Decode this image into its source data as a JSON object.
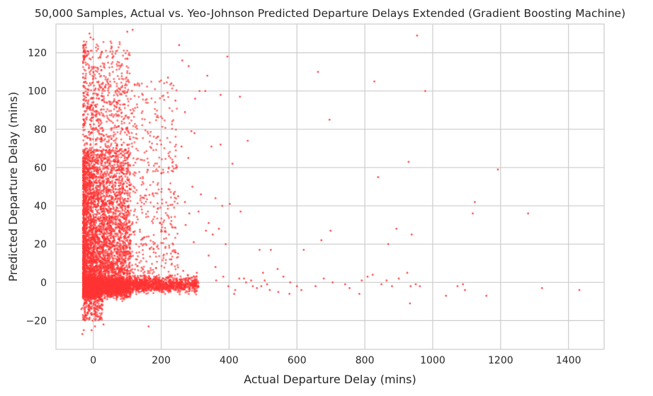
{
  "chart_data": {
    "type": "scatter",
    "title": "50,000 Samples, Actual vs. Yeo-Johnson Predicted Departure Delays Extended (Gradient Boosting Machine)",
    "xlabel": "Actual Departure Delay (mins)",
    "ylabel": "Predicted Departure Delay (mins)",
    "xlim": [
      -110,
      1505
    ],
    "ylim": [
      -35,
      135
    ],
    "xticks": [
      0,
      200,
      400,
      600,
      800,
      1000,
      1200,
      1400
    ],
    "yticks": [
      -20,
      0,
      20,
      40,
      60,
      80,
      100,
      120
    ],
    "xtick_labels": [
      "0",
      "200",
      "400",
      "600",
      "800",
      "1000",
      "1200",
      "1400"
    ],
    "ytick_labels": [
      "−20",
      "0",
      "20",
      "40",
      "60",
      "80",
      "100",
      "120"
    ],
    "grid": true,
    "sample_count": 50000,
    "series": [
      {
        "color": "#ff3333",
        "points": [
          [
            954,
            129
          ],
          [
            978,
            100
          ],
          [
            828,
            105
          ],
          [
            662,
            110
          ],
          [
            696,
            85
          ],
          [
            395,
            118
          ],
          [
            432,
            97
          ],
          [
            336,
            108
          ],
          [
            1192,
            59
          ],
          [
            929,
            63
          ],
          [
            839,
            55
          ],
          [
            1124,
            42
          ],
          [
            1281,
            36
          ],
          [
            1118,
            36
          ],
          [
            410,
            62
          ],
          [
            455,
            74
          ],
          [
            375,
            72
          ],
          [
            348,
            71
          ],
          [
            402,
            41
          ],
          [
            434,
            37
          ],
          [
            938,
            25
          ],
          [
            893,
            28
          ],
          [
            699,
            27
          ],
          [
            869,
            20
          ],
          [
            672,
            22
          ],
          [
            620,
            17
          ],
          [
            523,
            17
          ],
          [
            490,
            17
          ],
          [
            543,
            7
          ],
          [
            500,
            5
          ],
          [
            560,
            3
          ],
          [
            580,
            0
          ],
          [
            600,
            -2
          ],
          [
            613,
            -4
          ],
          [
            655,
            -2
          ],
          [
            679,
            2
          ],
          [
            705,
            0
          ],
          [
            742,
            -1
          ],
          [
            755,
            -3
          ],
          [
            791,
            1
          ],
          [
            808,
            3
          ],
          [
            823,
            4
          ],
          [
            849,
            -1
          ],
          [
            864,
            1
          ],
          [
            880,
            -2
          ],
          [
            900,
            2
          ],
          [
            925,
            5
          ],
          [
            935,
            -2
          ],
          [
            950,
            -1
          ],
          [
            962,
            -2
          ],
          [
            1039,
            -7
          ],
          [
            1073,
            -2
          ],
          [
            1089,
            -1
          ],
          [
            1095,
            -4
          ],
          [
            1158,
            -7
          ],
          [
            1322,
            -3
          ],
          [
            1432,
            -4
          ],
          [
            933,
            -11
          ],
          [
            784,
            -6
          ],
          [
            470,
            -2
          ],
          [
            450,
            0
          ],
          [
            430,
            2
          ],
          [
            415,
            -6
          ],
          [
            482,
            -3
          ],
          [
            520,
            -4
          ],
          [
            362,
            1
          ],
          [
            383,
            3
          ],
          [
            444,
            2
          ],
          [
            505,
            1
          ],
          [
            512,
            -1
          ],
          [
            545,
            -5
          ],
          [
            578,
            -6
          ],
          [
            495,
            -2
          ],
          [
            465,
            1
          ],
          [
            418,
            -4
          ],
          [
            398,
            -2
          ],
          [
            -32,
            -27
          ],
          [
            -28,
            -25
          ],
          [
            5,
            -23
          ],
          [
            -5,
            -25
          ],
          [
            163,
            -23
          ],
          [
            -2,
            -20
          ],
          [
            30,
            -22
          ],
          [
            -18,
            -16
          ],
          [
            -25,
            -11
          ],
          [
            -15,
            -9
          ],
          [
            -35,
            -14
          ],
          [
            -11,
            130
          ],
          [
            -8,
            128
          ],
          [
            0,
            127
          ],
          [
            14,
            122
          ],
          [
            100,
            131
          ],
          [
            116,
            132
          ],
          [
            253,
            124
          ],
          [
            262,
            116
          ],
          [
            281,
            113
          ],
          [
            313,
            100
          ],
          [
            330,
            100
          ],
          [
            300,
            96
          ],
          [
            375,
            98
          ],
          [
            220,
            107
          ],
          [
            230,
            104
          ],
          [
            242,
            95
          ],
          [
            270,
            89
          ],
          [
            289,
            79
          ],
          [
            298,
            78
          ],
          [
            260,
            71
          ],
          [
            280,
            65
          ],
          [
            292,
            50
          ],
          [
            317,
            46
          ],
          [
            310,
            37
          ],
          [
            283,
            36
          ],
          [
            272,
            30
          ],
          [
            332,
            27
          ],
          [
            352,
            25
          ],
          [
            370,
            28
          ],
          [
            390,
            20
          ],
          [
            296,
            21
          ],
          [
            250,
            15
          ],
          [
            230,
            12
          ],
          [
            340,
            14
          ],
          [
            360,
            8
          ],
          [
            305,
            5
          ],
          [
            285,
            2
          ],
          [
            265,
            6
          ],
          [
            245,
            60
          ],
          [
            223,
            66
          ],
          [
            235,
            58
          ],
          [
            250,
            45
          ],
          [
            270,
            42
          ],
          [
            340,
            31
          ],
          [
            360,
            44
          ],
          [
            380,
            40
          ]
        ]
      }
    ]
  }
}
